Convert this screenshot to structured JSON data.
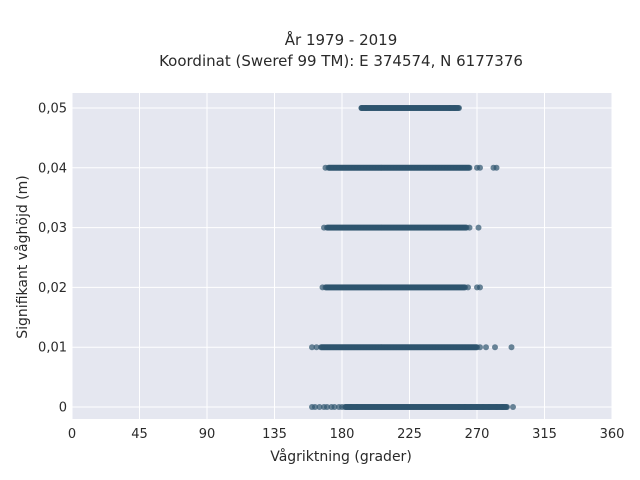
{
  "chart_data": {
    "type": "scatter",
    "title_lines": [
      "År 1979 - 2019",
      "Koordinat (Sweref 99 TM): E 374574, N 6177376"
    ],
    "xlabel": "Vågriktning (grader)",
    "ylabel": "Signifikant våghöjd (m)",
    "xlim": [
      0,
      360
    ],
    "ylim": [
      -0.002,
      0.0525
    ],
    "x_ticks": [
      0,
      45,
      90,
      135,
      180,
      225,
      270,
      315,
      360
    ],
    "x_tick_labels": [
      "0",
      "45",
      "90",
      "135",
      "180",
      "225",
      "270",
      "315",
      "360"
    ],
    "y_ticks": [
      0,
      0.01,
      0.02,
      0.03,
      0.04,
      0.05
    ],
    "y_tick_labels": [
      "0",
      "0,01",
      "0,02",
      "0,03",
      "0,04",
      "0,05"
    ],
    "grid": true,
    "legend": "none",
    "colors": {
      "background": "#e5e7f0",
      "grid": "#ffffff",
      "marker": "#2e546e"
    },
    "bands": [
      {
        "y": 0.05,
        "dense_range": [
          193,
          258
        ],
        "x": [
          193,
          196,
          252,
          255
        ]
      },
      {
        "y": 0.04,
        "dense_range": [
          171,
          265
        ],
        "x": [
          169,
          270,
          272,
          281,
          283
        ]
      },
      {
        "y": 0.03,
        "dense_range": [
          170,
          263
        ],
        "x": [
          168,
          265,
          271
        ]
      },
      {
        "y": 0.02,
        "dense_range": [
          169,
          262
        ],
        "x": [
          167,
          264,
          270,
          272
        ]
      },
      {
        "y": 0.01,
        "dense_range": [
          166,
          270
        ],
        "x": [
          160,
          163,
          272,
          276,
          282,
          293
        ]
      },
      {
        "y": 0.0,
        "dense_range": [
          182,
          290
        ],
        "x": [
          160,
          162,
          165,
          168,
          170,
          173,
          175,
          178,
          180,
          186,
          190,
          258,
          262,
          266,
          270,
          274,
          278,
          283,
          287,
          294
        ]
      }
    ]
  }
}
